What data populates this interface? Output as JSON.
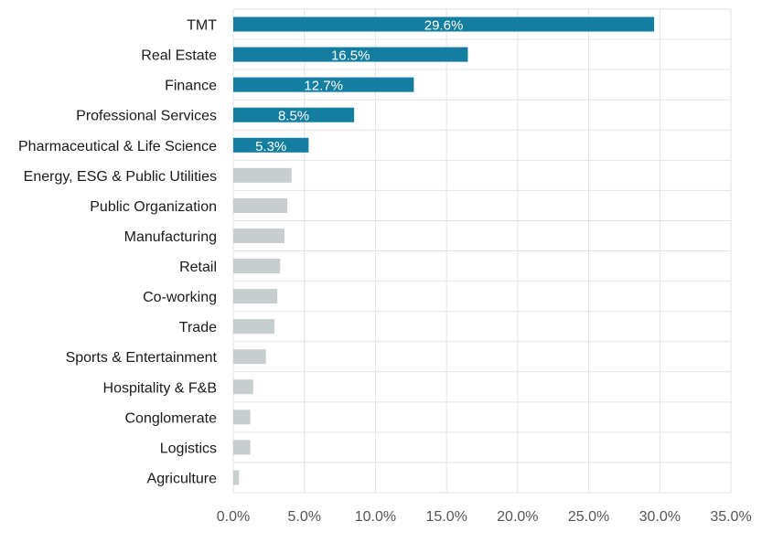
{
  "chart_data": {
    "type": "bar",
    "orientation": "horizontal",
    "title": "",
    "xlabel": "",
    "ylabel": "",
    "xlim": [
      0,
      35
    ],
    "xticks": [
      0,
      5,
      10,
      15,
      20,
      25,
      30,
      35
    ],
    "xtick_labels": [
      "0.0%",
      "5.0%",
      "10.0%",
      "15.0%",
      "20.0%",
      "25.0%",
      "30.0%",
      "35.0%"
    ],
    "grid": true,
    "categories": [
      "TMT",
      "Real Estate",
      "Finance",
      "Professional Services",
      "Pharmaceutical & Life Science",
      "Energy, ESG & Public Utilities",
      "Public Organization",
      "Manufacturing",
      "Retail",
      "Co-working",
      "Trade",
      "Sports & Entertainment",
      "Hospitality & F&B",
      "Conglomerate",
      "Logistics",
      "Agriculture"
    ],
    "values": [
      29.6,
      16.5,
      12.7,
      8.5,
      5.3,
      4.1,
      3.8,
      3.6,
      3.3,
      3.1,
      2.9,
      2.3,
      1.4,
      1.2,
      1.2,
      0.4
    ],
    "data_labels": [
      "29.6%",
      "16.5%",
      "12.7%",
      "8.5%",
      "5.3%",
      "",
      "",
      "",
      "",
      "",
      "",
      "",
      "",
      "",
      "",
      ""
    ],
    "highlighted": [
      true,
      true,
      true,
      true,
      true,
      false,
      false,
      false,
      false,
      false,
      false,
      false,
      false,
      false,
      false,
      false
    ],
    "colors": {
      "highlight": "#137ea0",
      "muted": "#c8cdcf",
      "grid": "#e3e3e3"
    }
  }
}
